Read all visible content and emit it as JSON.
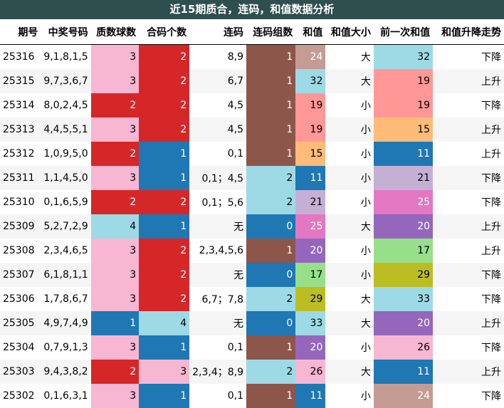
{
  "chart_data": {
    "type": "table",
    "title": "近15期质合，连码，和值数据分析",
    "columns": [
      "期号",
      "中奖号码",
      "质数球数",
      "合码个数",
      "连码",
      "连码组数",
      "和值",
      "和值大小",
      "前一次和值",
      "和值升降走势"
    ],
    "rows": [
      [
        "25316",
        "9,1,8,1,5",
        "3",
        "2",
        "8,9",
        "1",
        "24",
        "大",
        "32",
        "下降"
      ],
      [
        "25315",
        "9,7,3,6,7",
        "3",
        "2",
        "6,7",
        "1",
        "32",
        "大",
        "19",
        "上升"
      ],
      [
        "25314",
        "8,0,2,4,5",
        "2",
        "2",
        "4,5",
        "1",
        "19",
        "小",
        "19",
        "下降"
      ],
      [
        "25313",
        "4,4,5,5,1",
        "3",
        "2",
        "4,5",
        "1",
        "19",
        "小",
        "15",
        "上升"
      ],
      [
        "25312",
        "1,0,9,5,0",
        "2",
        "1",
        "0,1",
        "1",
        "15",
        "小",
        "11",
        "上升"
      ],
      [
        "25311",
        "1,1,4,5,0",
        "3",
        "1",
        "0,1；4,5",
        "2",
        "11",
        "小",
        "21",
        "下降"
      ],
      [
        "25310",
        "0,1,6,5,9",
        "2",
        "2",
        "0,1；5,6",
        "2",
        "21",
        "小",
        "25",
        "下降"
      ],
      [
        "25309",
        "5,2,7,2,9",
        "4",
        "1",
        "无",
        "0",
        "25",
        "大",
        "20",
        "上升"
      ],
      [
        "25308",
        "2,3,4,6,5",
        "3",
        "2",
        "2,3,4,5,6",
        "1",
        "20",
        "小",
        "17",
        "上升"
      ],
      [
        "25307",
        "6,1,8,1,1",
        "3",
        "2",
        "无",
        "0",
        "17",
        "小",
        "29",
        "下降"
      ],
      [
        "25306",
        "1,7,8,6,7",
        "3",
        "2",
        "6,7；7,8",
        "2",
        "29",
        "大",
        "33",
        "下降"
      ],
      [
        "25305",
        "4,9,7,4,9",
        "1",
        "4",
        "无",
        "0",
        "33",
        "大",
        "20",
        "上升"
      ],
      [
        "25304",
        "0,7,9,1,3",
        "3",
        "1",
        "0,1",
        "1",
        "20",
        "小",
        "26",
        "下降"
      ],
      [
        "25303",
        "9,4,3,8,2",
        "2",
        "3",
        "2,3,4；8,9",
        "2",
        "26",
        "大",
        "11",
        "上升"
      ],
      [
        "25302",
        "0,1,6,3,1",
        "3",
        "1",
        "0,1",
        "1",
        "11",
        "小",
        "24",
        "下降"
      ]
    ],
    "cell_colors": {
      "质数球数": {
        "1": "#1f77b4",
        "2": "#d62728",
        "3": "#f7b6d2",
        "4": "#9edae5"
      },
      "合码个数": {
        "1": "#1f77b4",
        "2": "#d62728",
        "3": "#f7b6d2",
        "4": "#9edae5"
      },
      "连码组数": {
        "0": "#1f77b4",
        "1": "#8c564b",
        "2": "#9edae5"
      },
      "sum_values": {
        "11": "#1f77b4",
        "15": "#ffbb78",
        "17": "#98df8a",
        "19": "#ff9896",
        "20": "#9467bd",
        "21": "#c5b0d5",
        "24": "#c49c94",
        "25": "#e377c2",
        "26": "#f7b6d2",
        "29": "#bcbd22",
        "32": "#9edae5",
        "33": "#9edae5"
      },
      "light_text": {
        "#1f77b4": "#ffffff",
        "#d62728": "#ffffff",
        "#8c564b": "#ffffff",
        "#9467bd": "#ffffff",
        "#e377c2": "#ffffff",
        "#c49c94": "#ffffff"
      }
    },
    "header_color": "#2f4f4f"
  }
}
